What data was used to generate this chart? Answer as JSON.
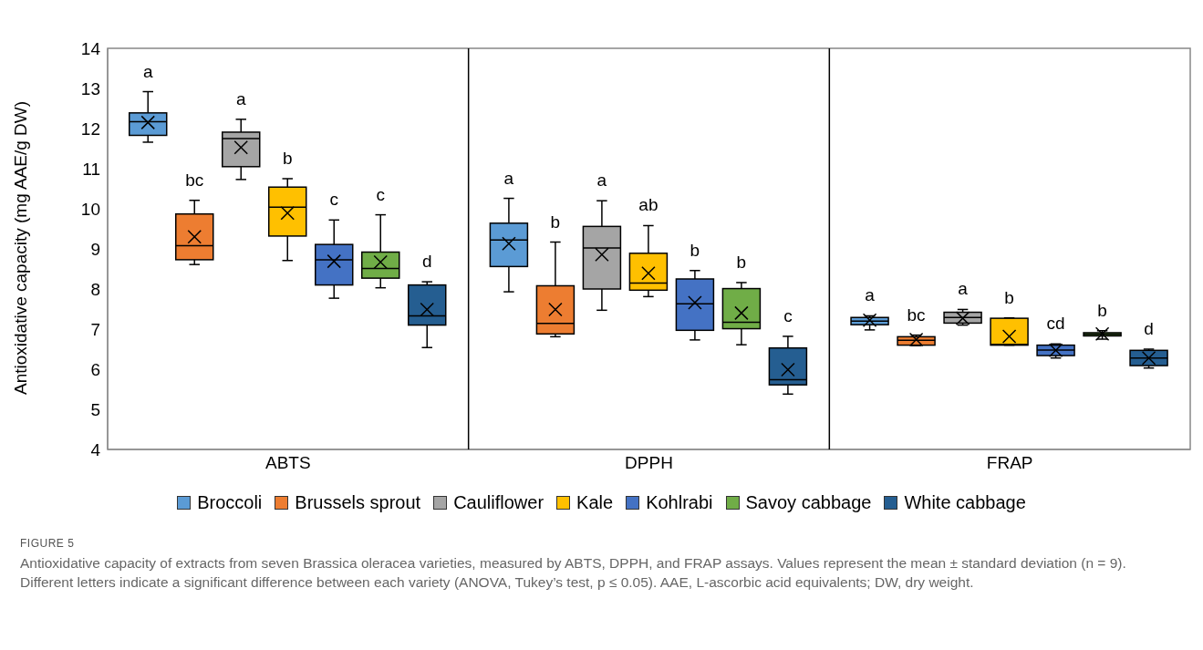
{
  "chart_data": {
    "type": "box",
    "title": "FIGURE 5",
    "ylabel": "Antioxidative capacity (mg AAE/g DW)",
    "categories": [
      "ABTS",
      "DPPH",
      "FRAP"
    ],
    "ylim": [
      4,
      14
    ],
    "yticks": [
      4,
      5,
      6,
      7,
      8,
      9,
      10,
      11,
      12,
      13,
      14
    ],
    "legend": "bottom",
    "grid": false,
    "series": [
      {
        "name": "Broccoli",
        "color": "#5b9bd5",
        "value_labels": [
          "a",
          "a",
          "a"
        ],
        "boxes": [
          {
            "low": 11.66,
            "q1": 11.83,
            "median": 12.17,
            "q3": 12.39,
            "high": 12.92,
            "mean": 12.15
          },
          {
            "low": 7.93,
            "q1": 8.56,
            "median": 9.22,
            "q3": 9.64,
            "high": 10.26,
            "mean": 9.13
          },
          {
            "low": 6.98,
            "q1": 7.11,
            "median": 7.2,
            "q3": 7.29,
            "high": 7.33,
            "mean": 7.22
          }
        ]
      },
      {
        "name": "Brussels sprout",
        "color": "#ed7d31",
        "value_labels": [
          "bc",
          "b",
          "bc"
        ],
        "boxes": [
          {
            "low": 8.61,
            "q1": 8.73,
            "median": 9.08,
            "q3": 9.87,
            "high": 10.21,
            "mean": 9.3
          },
          {
            "low": 6.81,
            "q1": 6.88,
            "median": 7.14,
            "q3": 8.08,
            "high": 9.17,
            "mean": 7.49
          },
          {
            "low": 6.59,
            "q1": 6.6,
            "median": 6.72,
            "q3": 6.81,
            "high": 6.85,
            "mean": 6.74
          }
        ]
      },
      {
        "name": "Cauliflower",
        "color": "#a5a5a5",
        "value_labels": [
          "a",
          "a",
          "a"
        ],
        "boxes": [
          {
            "low": 10.73,
            "q1": 11.05,
            "median": 11.75,
            "q3": 11.91,
            "high": 12.23,
            "mean": 11.53
          },
          {
            "low": 7.47,
            "q1": 8.0,
            "median": 9.02,
            "q3": 9.56,
            "high": 10.2,
            "mean": 8.86
          },
          {
            "low": 7.1,
            "q1": 7.15,
            "median": 7.29,
            "q3": 7.42,
            "high": 7.49,
            "mean": 7.27
          }
        ]
      },
      {
        "name": "Kale",
        "color": "#ffc000",
        "value_labels": [
          "b",
          "ab",
          "b"
        ],
        "boxes": [
          {
            "low": 8.71,
            "q1": 9.32,
            "median": 10.04,
            "q3": 10.54,
            "high": 10.75,
            "mean": 9.89
          },
          {
            "low": 7.81,
            "q1": 7.97,
            "median": 8.15,
            "q3": 8.89,
            "high": 9.58,
            "mean": 8.39
          },
          {
            "low": 6.6,
            "q1": 6.6,
            "median": 6.62,
            "q3": 7.27,
            "high": 7.28,
            "mean": 6.82
          }
        ]
      },
      {
        "name": "Kohlrabi",
        "color": "#4472c4",
        "value_labels": [
          "c",
          "b",
          "cd"
        ],
        "boxes": [
          {
            "low": 7.77,
            "q1": 8.1,
            "median": 8.73,
            "q3": 9.11,
            "high": 9.72,
            "mean": 8.69
          },
          {
            "low": 6.73,
            "q1": 6.97,
            "median": 7.63,
            "q3": 8.25,
            "high": 8.46,
            "mean": 7.66
          },
          {
            "low": 6.28,
            "q1": 6.34,
            "median": 6.48,
            "q3": 6.6,
            "high": 6.63,
            "mean": 6.47
          }
        ]
      },
      {
        "name": "Savoy cabbage",
        "color": "#70ad47",
        "value_labels": [
          "c",
          "b",
          "b"
        ],
        "boxes": [
          {
            "low": 8.03,
            "q1": 8.27,
            "median": 8.51,
            "q3": 8.92,
            "high": 9.85,
            "mean": 8.67
          },
          {
            "low": 6.61,
            "q1": 7.01,
            "median": 7.17,
            "q3": 8.01,
            "high": 8.16,
            "mean": 7.4
          },
          {
            "low": 6.75,
            "q1": 6.83,
            "median": 6.87,
            "q3": 6.91,
            "high": 6.96,
            "mean": 6.88
          }
        ]
      },
      {
        "name": "White cabbage",
        "color": "#255e91",
        "value_labels": [
          "d",
          "c",
          "d"
        ],
        "boxes": [
          {
            "low": 6.54,
            "q1": 7.1,
            "median": 7.33,
            "q3": 8.1,
            "high": 8.18,
            "mean": 7.49
          },
          {
            "low": 5.38,
            "q1": 5.61,
            "median": 5.74,
            "q3": 6.53,
            "high": 6.82,
            "mean": 5.99
          },
          {
            "low": 6.03,
            "q1": 6.09,
            "median": 6.28,
            "q3": 6.47,
            "high": 6.5,
            "mean": 6.28
          }
        ]
      }
    ],
    "annotations": [
      "Antioxidative capacity of extracts from seven Brassica oleracea varieties, measured by ABTS, DPPH, and FRAP assays. Values represent the mean ± standard deviation (n = 9). Different letters indicate a significant difference between each variety (ANOVA, Tukey’s test, p ≤ 0.05). AAE, L-ascorbic acid equivalents; DW, dry weight."
    ]
  }
}
